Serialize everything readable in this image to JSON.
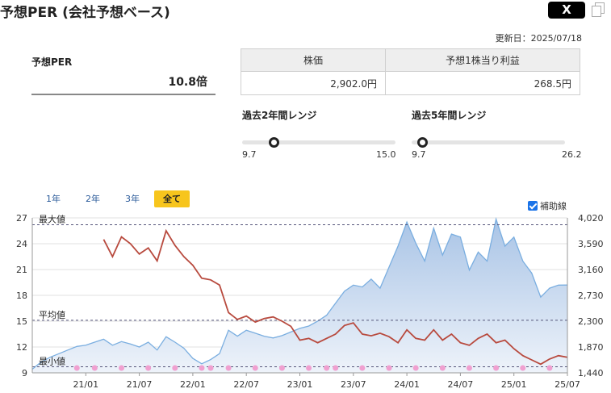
{
  "header": {
    "title": "予想PER (会社予想ベース)",
    "share_label": "X",
    "updated": "更新日：2025/07/18"
  },
  "per": {
    "label": "予想PER",
    "value": "10.8倍"
  },
  "info_table": {
    "headers": [
      "株価",
      "予想1株当り利益"
    ],
    "values": [
      "2,902.0円",
      "268.5円"
    ]
  },
  "ranges": [
    {
      "title": "過去2年間レンジ",
      "min": "9.7",
      "max": "15.0",
      "current": 10.8,
      "min_value": 9.7,
      "max_value": 15.0
    },
    {
      "title": "過去5年間レンジ",
      "min": "9.7",
      "max": "26.2",
      "current": 10.8,
      "min_value": 9.7,
      "max_value": 26.2
    }
  ],
  "periods": [
    "1年",
    "2年",
    "3年",
    "全て"
  ],
  "active_period": "全て",
  "aux_line_label": "補助線",
  "chart_data": {
    "type": "line",
    "x_ticks": [
      "21/01",
      "21/07",
      "22/01",
      "22/07",
      "23/01",
      "23/07",
      "24/01",
      "24/07",
      "25/01",
      "25/07"
    ],
    "left_axis": {
      "ticks": [
        "27",
        "24",
        "21",
        "18",
        "15",
        "12",
        "9"
      ],
      "range": [
        9,
        27
      ]
    },
    "right_axis": {
      "ticks": [
        "4,020",
        "3,590",
        "3,160",
        "2,730",
        "2,300",
        "1,870",
        "1,440"
      ],
      "range": [
        1440,
        4020
      ]
    },
    "reference_lines": [
      {
        "label": "最大値",
        "value": 26.2
      },
      {
        "label": "平均値",
        "value": 15.1
      },
      {
        "label": "最小値",
        "value": 9.7
      }
    ],
    "series": [
      {
        "axis": "left",
        "color": "#b84a3e",
        "points": [
          [
            "2021-03",
            24.5
          ],
          [
            "2021-04",
            22.5
          ],
          [
            "2021-05",
            24.8
          ],
          [
            "2021-06",
            24.0
          ],
          [
            "2021-07",
            22.8
          ],
          [
            "2021-08",
            23.5
          ],
          [
            "2021-09",
            22.0
          ],
          [
            "2021-10",
            25.5
          ],
          [
            "2021-11",
            23.8
          ],
          [
            "2021-12",
            22.5
          ],
          [
            "2022-01",
            21.5
          ],
          [
            "2022-02",
            20.0
          ],
          [
            "2022-03",
            19.8
          ],
          [
            "2022-04",
            19.2
          ],
          [
            "2022-05",
            16.0
          ],
          [
            "2022-06",
            15.2
          ],
          [
            "2022-07",
            15.6
          ],
          [
            "2022-08",
            14.9
          ],
          [
            "2022-09",
            15.3
          ],
          [
            "2022-10",
            15.5
          ],
          [
            "2022-11",
            15.0
          ],
          [
            "2022-12",
            14.4
          ],
          [
            "2023-01",
            12.8
          ],
          [
            "2023-02",
            13.0
          ],
          [
            "2023-03",
            12.5
          ],
          [
            "2023-04",
            13.0
          ],
          [
            "2023-05",
            13.5
          ],
          [
            "2023-06",
            14.5
          ],
          [
            "2023-07",
            14.8
          ],
          [
            "2023-08",
            13.5
          ],
          [
            "2023-09",
            13.3
          ],
          [
            "2023-10",
            13.6
          ],
          [
            "2023-11",
            13.2
          ],
          [
            "2023-12",
            12.5
          ],
          [
            "2024-01",
            14.0
          ],
          [
            "2024-02",
            13.0
          ],
          [
            "2024-03",
            12.8
          ],
          [
            "2024-04",
            14.0
          ],
          [
            "2024-05",
            12.8
          ],
          [
            "2024-06",
            13.5
          ],
          [
            "2024-07",
            12.5
          ],
          [
            "2024-08",
            12.2
          ],
          [
            "2024-09",
            13.0
          ],
          [
            "2024-10",
            13.5
          ],
          [
            "2024-11",
            12.5
          ],
          [
            "2024-12",
            12.8
          ],
          [
            "2025-01",
            11.8
          ],
          [
            "2025-02",
            11.0
          ],
          [
            "2025-03",
            10.5
          ],
          [
            "2025-04",
            10.0
          ],
          [
            "2025-05",
            10.6
          ],
          [
            "2025-06",
            11.0
          ],
          [
            "2025-07",
            10.8
          ]
        ]
      },
      {
        "axis": "right",
        "color": "#7aaee0",
        "fill": "#c6d8ef",
        "points": [
          [
            "2020-07",
            1500
          ],
          [
            "2020-08",
            1620
          ],
          [
            "2020-09",
            1700
          ],
          [
            "2020-10",
            1760
          ],
          [
            "2020-11",
            1820
          ],
          [
            "2020-12",
            1880
          ],
          [
            "2021-01",
            1900
          ],
          [
            "2021-02",
            1950
          ],
          [
            "2021-03",
            2000
          ],
          [
            "2021-04",
            1900
          ],
          [
            "2021-05",
            1960
          ],
          [
            "2021-06",
            1920
          ],
          [
            "2021-07",
            1870
          ],
          [
            "2021-08",
            1950
          ],
          [
            "2021-09",
            1820
          ],
          [
            "2021-10",
            2040
          ],
          [
            "2021-11",
            1950
          ],
          [
            "2021-12",
            1850
          ],
          [
            "2022-01",
            1680
          ],
          [
            "2022-02",
            1590
          ],
          [
            "2022-03",
            1660
          ],
          [
            "2022-04",
            1760
          ],
          [
            "2022-05",
            2150
          ],
          [
            "2022-06",
            2050
          ],
          [
            "2022-07",
            2150
          ],
          [
            "2022-08",
            2100
          ],
          [
            "2022-09",
            2050
          ],
          [
            "2022-10",
            2020
          ],
          [
            "2022-11",
            2060
          ],
          [
            "2022-12",
            2120
          ],
          [
            "2023-01",
            2180
          ],
          [
            "2023-02",
            2220
          ],
          [
            "2023-03",
            2300
          ],
          [
            "2023-04",
            2400
          ],
          [
            "2023-05",
            2600
          ],
          [
            "2023-06",
            2800
          ],
          [
            "2023-07",
            2900
          ],
          [
            "2023-08",
            2870
          ],
          [
            "2023-09",
            3000
          ],
          [
            "2023-10",
            2850
          ],
          [
            "2023-11",
            3200
          ],
          [
            "2023-12",
            3550
          ],
          [
            "2024-01",
            3950
          ],
          [
            "2024-02",
            3600
          ],
          [
            "2024-03",
            3300
          ],
          [
            "2024-04",
            3850
          ],
          [
            "2024-05",
            3400
          ],
          [
            "2024-06",
            3750
          ],
          [
            "2024-07",
            3700
          ],
          [
            "2024-08",
            3150
          ],
          [
            "2024-09",
            3450
          ],
          [
            "2024-10",
            3300
          ],
          [
            "2024-11",
            4000
          ],
          [
            "2024-12",
            3550
          ],
          [
            "2025-01",
            3700
          ],
          [
            "2025-02",
            3300
          ],
          [
            "2025-03",
            3100
          ],
          [
            "2025-04",
            2700
          ],
          [
            "2025-05",
            2850
          ],
          [
            "2025-06",
            2900
          ],
          [
            "2025-07",
            2902
          ]
        ]
      }
    ],
    "markers": {
      "color": "#f0a0d0",
      "dates": [
        "2020-12",
        "2021-02",
        "2021-05",
        "2021-08",
        "2021-11",
        "2022-02",
        "2022-03",
        "2022-05",
        "2022-08",
        "2022-11",
        "2023-02",
        "2023-04",
        "2023-05",
        "2023-08",
        "2023-11",
        "2024-02",
        "2024-05",
        "2024-08",
        "2024-11",
        "2025-02",
        "2025-05"
      ]
    }
  }
}
